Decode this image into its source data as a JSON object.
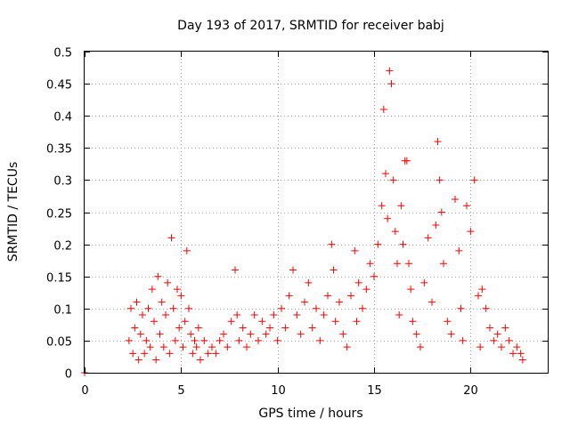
{
  "chart_data": {
    "type": "scatter",
    "title": "Day 193 of 2017, SRMTID for receiver babj",
    "xlabel": "GPS time / hours",
    "ylabel": "SRMTID / TECUs",
    "xlim": [
      0,
      24
    ],
    "ylim": [
      0,
      0.5
    ],
    "x_ticks": [
      0,
      5,
      10,
      15,
      20
    ],
    "x_tick_labels": [
      "0",
      "5",
      "10",
      "15",
      "20"
    ],
    "y_ticks": [
      0,
      0.05,
      0.1,
      0.15,
      0.2,
      0.25,
      0.3,
      0.35,
      0.4,
      0.45,
      0.5
    ],
    "y_tick_labels": [
      "0",
      "0.05",
      "0.1",
      "0.15",
      "0.2",
      "0.25",
      "0.3",
      "0.35",
      "0.4",
      "0.45",
      "0.5"
    ],
    "grid": true,
    "series": [
      {
        "name": "SRMTID",
        "marker": "+",
        "color": "#ff0000",
        "points": [
          [
            0.0,
            0.0
          ],
          [
            2.3,
            0.05
          ],
          [
            2.4,
            0.1
          ],
          [
            2.5,
            0.03
          ],
          [
            2.6,
            0.07
          ],
          [
            2.7,
            0.11
          ],
          [
            2.8,
            0.02
          ],
          [
            2.9,
            0.06
          ],
          [
            3.0,
            0.09
          ],
          [
            3.1,
            0.03
          ],
          [
            3.2,
            0.05
          ],
          [
            3.3,
            0.1
          ],
          [
            3.4,
            0.04
          ],
          [
            3.5,
            0.13
          ],
          [
            3.6,
            0.08
          ],
          [
            3.7,
            0.02
          ],
          [
            3.8,
            0.15
          ],
          [
            3.9,
            0.06
          ],
          [
            4.0,
            0.11
          ],
          [
            4.1,
            0.04
          ],
          [
            4.2,
            0.09
          ],
          [
            4.3,
            0.14
          ],
          [
            4.4,
            0.03
          ],
          [
            4.5,
            0.21
          ],
          [
            4.6,
            0.1
          ],
          [
            4.7,
            0.05
          ],
          [
            4.8,
            0.13
          ],
          [
            4.9,
            0.07
          ],
          [
            5.0,
            0.12
          ],
          [
            5.1,
            0.04
          ],
          [
            5.2,
            0.08
          ],
          [
            5.3,
            0.19
          ],
          [
            5.4,
            0.1
          ],
          [
            5.5,
            0.06
          ],
          [
            5.6,
            0.03
          ],
          [
            5.7,
            0.05
          ],
          [
            5.8,
            0.04
          ],
          [
            5.9,
            0.07
          ],
          [
            6.0,
            0.02
          ],
          [
            6.2,
            0.05
          ],
          [
            6.4,
            0.03
          ],
          [
            6.6,
            0.04
          ],
          [
            6.8,
            0.03
          ],
          [
            7.0,
            0.05
          ],
          [
            7.2,
            0.06
          ],
          [
            7.4,
            0.04
          ],
          [
            7.6,
            0.08
          ],
          [
            7.8,
            0.16
          ],
          [
            7.9,
            0.09
          ],
          [
            8.0,
            0.05
          ],
          [
            8.2,
            0.07
          ],
          [
            8.4,
            0.04
          ],
          [
            8.6,
            0.06
          ],
          [
            8.8,
            0.09
          ],
          [
            9.0,
            0.05
          ],
          [
            9.2,
            0.08
          ],
          [
            9.4,
            0.06
          ],
          [
            9.6,
            0.07
          ],
          [
            9.8,
            0.09
          ],
          [
            10.0,
            0.05
          ],
          [
            10.2,
            0.1
          ],
          [
            10.4,
            0.07
          ],
          [
            10.6,
            0.12
          ],
          [
            10.8,
            0.16
          ],
          [
            11.0,
            0.09
          ],
          [
            11.2,
            0.06
          ],
          [
            11.4,
            0.11
          ],
          [
            11.6,
            0.14
          ],
          [
            11.8,
            0.07
          ],
          [
            12.0,
            0.1
          ],
          [
            12.2,
            0.05
          ],
          [
            12.4,
            0.09
          ],
          [
            12.6,
            0.12
          ],
          [
            12.8,
            0.2
          ],
          [
            12.9,
            0.16
          ],
          [
            13.0,
            0.08
          ],
          [
            13.2,
            0.11
          ],
          [
            13.4,
            0.06
          ],
          [
            13.6,
            0.04
          ],
          [
            13.8,
            0.12
          ],
          [
            14.0,
            0.19
          ],
          [
            14.1,
            0.08
          ],
          [
            14.2,
            0.14
          ],
          [
            14.4,
            0.1
          ],
          [
            14.6,
            0.13
          ],
          [
            14.8,
            0.17
          ],
          [
            15.0,
            0.15
          ],
          [
            15.2,
            0.2
          ],
          [
            15.4,
            0.26
          ],
          [
            15.5,
            0.41
          ],
          [
            15.6,
            0.31
          ],
          [
            15.7,
            0.24
          ],
          [
            15.8,
            0.47
          ],
          [
            15.9,
            0.45
          ],
          [
            16.0,
            0.3
          ],
          [
            16.1,
            0.22
          ],
          [
            16.2,
            0.17
          ],
          [
            16.3,
            0.09
          ],
          [
            16.4,
            0.26
          ],
          [
            16.5,
            0.2
          ],
          [
            16.6,
            0.33
          ],
          [
            16.7,
            0.33
          ],
          [
            16.8,
            0.17
          ],
          [
            16.9,
            0.13
          ],
          [
            17.0,
            0.08
          ],
          [
            17.2,
            0.06
          ],
          [
            17.4,
            0.04
          ],
          [
            17.6,
            0.14
          ],
          [
            17.8,
            0.21
          ],
          [
            18.0,
            0.11
          ],
          [
            18.2,
            0.23
          ],
          [
            18.3,
            0.36
          ],
          [
            18.4,
            0.3
          ],
          [
            18.5,
            0.25
          ],
          [
            18.6,
            0.17
          ],
          [
            18.8,
            0.08
          ],
          [
            19.0,
            0.06
          ],
          [
            19.2,
            0.27
          ],
          [
            19.4,
            0.19
          ],
          [
            19.5,
            0.1
          ],
          [
            19.6,
            0.05
          ],
          [
            19.8,
            0.26
          ],
          [
            20.0,
            0.22
          ],
          [
            20.2,
            0.3
          ],
          [
            20.4,
            0.12
          ],
          [
            20.5,
            0.04
          ],
          [
            20.6,
            0.13
          ],
          [
            20.8,
            0.1
          ],
          [
            21.0,
            0.07
          ],
          [
            21.2,
            0.05
          ],
          [
            21.4,
            0.06
          ],
          [
            21.6,
            0.04
          ],
          [
            21.8,
            0.07
          ],
          [
            22.0,
            0.05
          ],
          [
            22.2,
            0.03
          ],
          [
            22.4,
            0.04
          ],
          [
            22.6,
            0.03
          ],
          [
            22.7,
            0.02
          ]
        ]
      }
    ]
  }
}
